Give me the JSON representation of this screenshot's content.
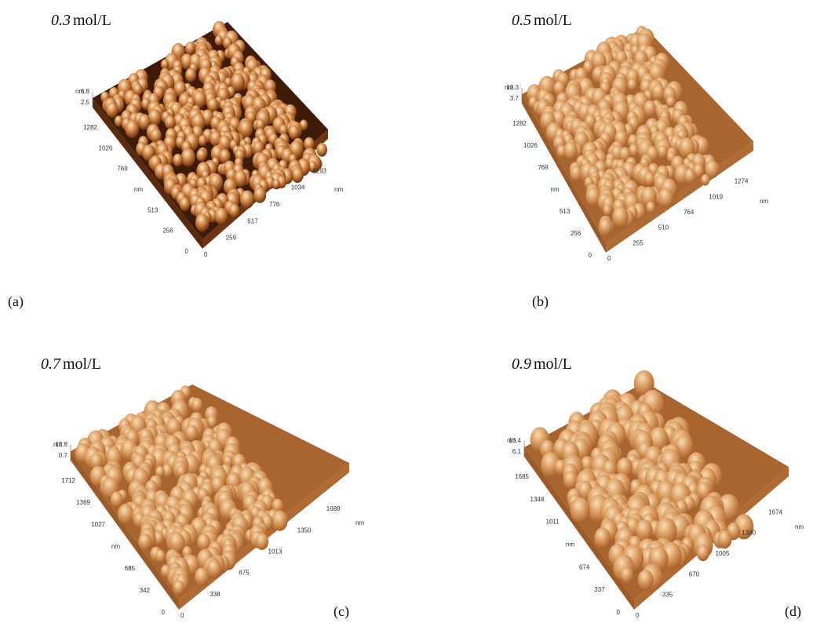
{
  "panels": [
    {
      "concentration": "0.3",
      "unit": "mol/L",
      "label": "(a)",
      "z_unit": "nm",
      "z_ticks": [
        "6.8",
        "2.5"
      ],
      "y_ticks": [
        "1282",
        "1026",
        "769",
        "nm",
        "513",
        "256",
        "0"
      ],
      "x_ticks": [
        "0",
        "259",
        "517",
        "776",
        "1034",
        "1293",
        "nm"
      ]
    },
    {
      "concentration": "0.5",
      "unit": "mol/L",
      "label": "(b)",
      "z_unit": "nm",
      "z_ticks": [
        "12.3",
        "3.7"
      ],
      "y_ticks": [
        "1282",
        "1026",
        "769",
        "nm",
        "513",
        "256",
        "0"
      ],
      "x_ticks": [
        "0",
        "255",
        "510",
        "764",
        "1019",
        "1274",
        "nm"
      ]
    },
    {
      "concentration": "0.7",
      "unit": "mol/L",
      "label": "(c)",
      "z_unit": "nm",
      "z_ticks": [
        "12.8",
        "0.7"
      ],
      "y_ticks": [
        "1712",
        "1369",
        "1027",
        "nm",
        "685",
        "342",
        "0"
      ],
      "x_ticks": [
        "0",
        "338",
        "675",
        "1013",
        "1350",
        "1689",
        "nm"
      ]
    },
    {
      "concentration": "0.9",
      "unit": "mol/L",
      "label": "(d)",
      "z_unit": "nm",
      "z_ticks": [
        "13.4",
        "6.1"
      ],
      "y_ticks": [
        "1685",
        "1348",
        "1011",
        "nm",
        "674",
        "337",
        "0"
      ],
      "x_ticks": [
        "0",
        "335",
        "670",
        "1005",
        "1340",
        "1674",
        "nm"
      ]
    }
  ]
}
